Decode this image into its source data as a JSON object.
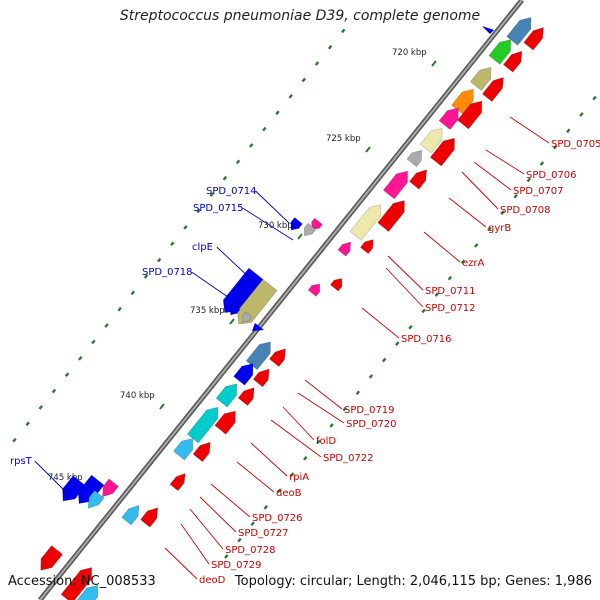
{
  "title": "Streptococcus pneumoniae D39, complete genome",
  "footer": {
    "accession": "Accession: NC_008533",
    "summary": "Topology: circular; Length: 2,046,115 bp; Genes: 1,986"
  },
  "colors": {
    "backbone": "#7a7a7a",
    "tick": "#2a7a2a",
    "label_forward": "#0000cc",
    "label_reverse": "#cc0000",
    "gene_red": "#ee0000",
    "gene_blue": "#0000ee",
    "gene_pink": "#ff1493",
    "gene_khaki": "#bdb76b",
    "gene_paleyellow": "#eee8aa",
    "gene_cyan": "#00cccc",
    "gene_lightblue": "#33bbee",
    "gene_steelblue": "#4682b4",
    "gene_green": "#22cc22",
    "gene_orange": "#ff8c00",
    "gene_gray": "#aaaaaa"
  },
  "kbp_ticks": [
    {
      "label": "720 kbp"
    },
    {
      "label": "725 kbp"
    },
    {
      "label": "730 kbp"
    },
    {
      "label": "735 kbp"
    },
    {
      "label": "740 kbp"
    },
    {
      "label": "745 kbp"
    }
  ],
  "forward_labels": [
    {
      "name": "SPD_0714"
    },
    {
      "name": "SPD_0715"
    },
    {
      "name": "clpE"
    },
    {
      "name": "SPD_0718"
    },
    {
      "name": "rpsT"
    }
  ],
  "reverse_labels": [
    {
      "name": "SPD_0705"
    },
    {
      "name": "SPD_0706"
    },
    {
      "name": "SPD_0707"
    },
    {
      "name": "SPD_0708"
    },
    {
      "name": "gyrB"
    },
    {
      "name": "ezrA"
    },
    {
      "name": "SPD_0711"
    },
    {
      "name": "SPD_0712"
    },
    {
      "name": "SPD_0716"
    },
    {
      "name": "SPD_0719"
    },
    {
      "name": "SPD_0720"
    },
    {
      "name": "folD"
    },
    {
      "name": "SPD_0722"
    },
    {
      "name": "rpiA"
    },
    {
      "name": "deoB"
    },
    {
      "name": "SPD_0726"
    },
    {
      "name": "SPD_0727"
    },
    {
      "name": "SPD_0728"
    },
    {
      "name": "SPD_0729"
    },
    {
      "name": "deoD"
    }
  ]
}
